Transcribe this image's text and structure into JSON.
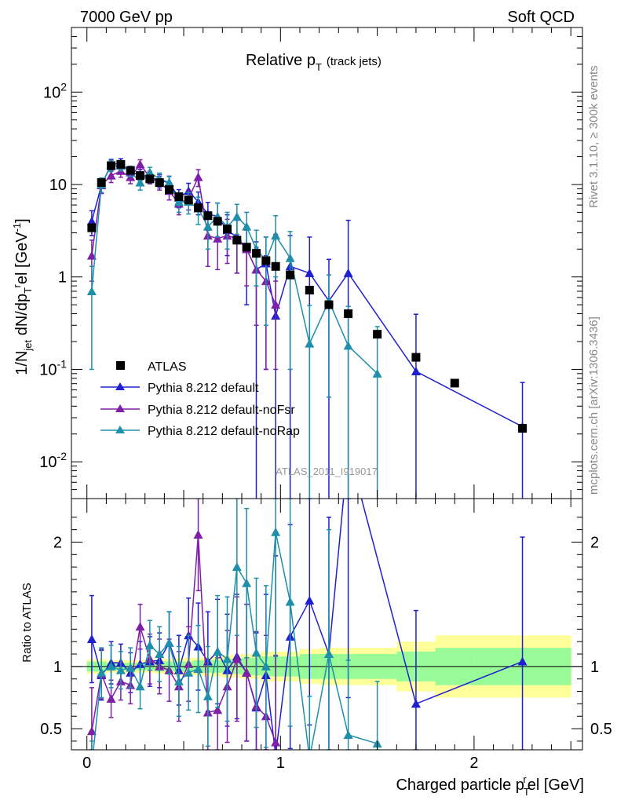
{
  "header": {
    "left": "7000 GeV pp",
    "right": "Soft QCD"
  },
  "side_texts": {
    "top": "Rivet 3.1.10, ≥ 300k events",
    "bottom": "mcplots.cern.ch [arXiv:1306.3436]"
  },
  "chart_data": {
    "type": "scatter",
    "title_main": "Relative p",
    "title_sub": "T",
    "title_note": "(track jets)",
    "watermark": "ATLAS_2011_I919017",
    "xlabel": "Charged particle p",
    "xlabel_sub": "T",
    "xlabel_sup": "r",
    "xlabel_tail": "el [GeV]",
    "ylabel": "1/N_jet dN/dp_T^rel [GeV^-1]",
    "ylabel_parts": {
      "a": "1/N",
      "b": "jet",
      "c": " dN/dp",
      "d": "T",
      "e": "r",
      "f": "el [GeV",
      "g": "-1",
      "h": "]"
    },
    "ratio_ylabel": "Ratio to ATLAS",
    "xlim": [
      -0.08,
      2.56
    ],
    "ylim": [
      0.004,
      500
    ],
    "yscale": "log",
    "ratio_ylim": [
      0.33,
      2.35
    ],
    "x_ticks": [
      "0",
      "1",
      "2"
    ],
    "y_ticks": [
      "10^-2",
      "10^-1",
      "1",
      "10",
      "10^2"
    ],
    "ratio_ticks": [
      "0.5",
      "1",
      "2"
    ],
    "legend": [
      "ATLAS",
      "Pythia 8.212 default",
      "Pythia 8.212 default-noFsr",
      "Pythia 8.212 default-noRap"
    ],
    "colors": {
      "data": "#000000",
      "default": "#1f1fd0",
      "noFsr": "#7f1fa8",
      "noRap": "#1f8faa",
      "band_inner": "#98fb98",
      "band_outer": "#ffff99"
    },
    "data": {
      "name": "ATLAS",
      "x": [
        0.025,
        0.075,
        0.125,
        0.175,
        0.225,
        0.275,
        0.325,
        0.375,
        0.425,
        0.475,
        0.525,
        0.575,
        0.625,
        0.675,
        0.725,
        0.775,
        0.825,
        0.875,
        0.925,
        0.975,
        1.05,
        1.15,
        1.25,
        1.35,
        1.5,
        1.7,
        1.9,
        2.25
      ],
      "y": [
        3.4,
        10.5,
        16.0,
        16.5,
        14.2,
        12.5,
        11.5,
        10.5,
        8.8,
        7.4,
        6.8,
        5.6,
        4.6,
        4.0,
        3.3,
        2.5,
        2.1,
        1.8,
        1.5,
        1.3,
        1.05,
        0.72,
        0.5,
        0.4,
        0.24,
        0.135,
        0.071,
        0.023
      ]
    },
    "series": [
      {
        "name": "Pythia 8.212 default",
        "x": [
          0.025,
          0.075,
          0.125,
          0.175,
          0.225,
          0.275,
          0.325,
          0.375,
          0.425,
          0.475,
          0.525,
          0.575,
          0.625,
          0.675,
          0.725,
          0.775,
          0.825,
          0.875,
          0.925,
          0.975,
          1.05,
          1.15,
          1.25,
          1.35,
          1.7,
          2.25
        ],
        "y": [
          4.0,
          9.8,
          16.5,
          17.0,
          13.5,
          12.8,
          12.0,
          11.0,
          10.5,
          7.2,
          8.5,
          6.5,
          4.8,
          4.5,
          3.2,
          2.7,
          2.0,
          1.2,
          1.4,
          0.38,
          1.3,
          1.1,
          0.55,
          1.1,
          0.095,
          0.024
        ],
        "yerr": [
          1.2,
          1.8,
          2.2,
          2.0,
          1.8,
          1.8,
          1.8,
          1.8,
          1.8,
          1.6,
          1.8,
          1.8,
          1.6,
          1.8,
          1.5,
          1.6,
          1.5,
          1.2,
          1.3,
          2.5,
          1.5,
          1.6,
          1.0,
          3.0,
          0.3,
          0.048
        ],
        "ratio": [
          1.22,
          0.93,
          1.03,
          1.03,
          0.95,
          1.02,
          1.04,
          1.05,
          1.19,
          0.97,
          1.25,
          1.16,
          1.04,
          1.12,
          0.97,
          1.08,
          0.95,
          0.67,
          0.93,
          0.29,
          1.24,
          1.53,
          1.1,
          2.75,
          0.7,
          1.04
        ],
        "ratio_err": [
          0.35,
          0.2,
          0.17,
          0.15,
          0.16,
          0.18,
          0.2,
          0.22,
          0.25,
          0.28,
          0.3,
          0.35,
          0.4,
          0.42,
          0.45,
          0.5,
          0.55,
          0.6,
          0.65,
          1.6,
          0.9,
          1.0,
          1.1,
          2.0,
          0.75,
          1.0
        ]
      },
      {
        "name": "Pythia 8.212 default-noFsr",
        "x": [
          0.025,
          0.075,
          0.125,
          0.175,
          0.225,
          0.275,
          0.325,
          0.375,
          0.425,
          0.475,
          0.525,
          0.575,
          0.625,
          0.675,
          0.725,
          0.775,
          0.825,
          0.875,
          0.925,
          0.975
        ],
        "y": [
          1.7,
          9.8,
          12.5,
          14.0,
          12.0,
          16.5,
          12.0,
          10.5,
          8.5,
          6.2,
          7.0,
          12.0,
          2.8,
          2.6,
          2.8,
          2.6,
          2.0,
          1.2,
          0.9,
          0.5
        ],
        "yerr": [
          0.8,
          1.8,
          2.0,
          2.0,
          1.8,
          2.0,
          1.8,
          1.8,
          1.7,
          1.5,
          1.7,
          2.5,
          1.5,
          1.4,
          1.4,
          1.5,
          1.2,
          0.9,
          0.8,
          0.4
        ],
        "ratio": [
          0.48,
          0.94,
          0.74,
          0.88,
          0.85,
          1.32,
          1.06,
          1.0,
          0.97,
          0.84,
          1.02,
          2.06,
          0.63,
          0.65,
          0.84,
          1.06,
          0.95,
          0.68,
          0.6,
          0.39
        ],
        "ratio_err": [
          0.35,
          0.2,
          0.15,
          0.15,
          0.15,
          0.18,
          0.2,
          0.22,
          0.25,
          0.28,
          0.3,
          0.45,
          0.4,
          0.42,
          0.45,
          0.5,
          0.55,
          0.6,
          0.65,
          0.7
        ]
      },
      {
        "name": "Pythia 8.212 default-noRap",
        "x": [
          0.025,
          0.075,
          0.125,
          0.175,
          0.225,
          0.275,
          0.325,
          0.375,
          0.425,
          0.475,
          0.525,
          0.575,
          0.625,
          0.675,
          0.725,
          0.775,
          0.825,
          0.875,
          0.925,
          0.975,
          1.05,
          1.15,
          1.25,
          1.35,
          1.5
        ],
        "y": [
          0.7,
          10.0,
          16.0,
          16.0,
          14.0,
          10.5,
          13.5,
          11.5,
          10.5,
          6.5,
          6.5,
          5.5,
          3.5,
          4.5,
          3.5,
          4.5,
          3.5,
          2.0,
          1.5,
          2.8,
          1.6,
          0.19,
          0.55,
          0.18,
          0.09
        ],
        "yerr": [
          0.6,
          1.8,
          2.2,
          2.0,
          1.8,
          1.8,
          1.8,
          1.8,
          1.7,
          1.5,
          1.7,
          1.8,
          1.5,
          1.8,
          1.5,
          1.6,
          1.5,
          1.2,
          1.2,
          1.8,
          1.5,
          0.3,
          0.5,
          0.3,
          0.2
        ],
        "ratio": [
          0.2,
          0.95,
          1.0,
          0.97,
          0.99,
          0.84,
          1.17,
          1.1,
          1.19,
          0.88,
          0.95,
          0.98,
          0.76,
          1.12,
          1.06,
          1.8,
          1.67,
          1.11,
          1.0,
          2.08,
          1.52,
          0.26,
          1.1,
          0.45,
          0.38
        ],
        "ratio_err": [
          0.2,
          0.2,
          0.17,
          0.15,
          0.16,
          0.18,
          0.2,
          0.22,
          0.25,
          0.28,
          0.3,
          0.35,
          0.4,
          0.45,
          0.5,
          0.55,
          0.6,
          0.6,
          0.65,
          1.0,
          1.0,
          0.5,
          1.0,
          0.6,
          0.5
        ]
      }
    ],
    "uncertainty_band": {
      "edges": [
        0,
        0.05,
        0.1,
        0.15,
        0.2,
        0.25,
        0.3,
        0.35,
        0.4,
        0.45,
        0.5,
        0.55,
        0.6,
        0.65,
        0.7,
        0.75,
        0.8,
        0.85,
        0.9,
        0.95,
        1.0,
        1.1,
        1.2,
        1.3,
        1.4,
        1.6,
        1.8,
        2.0,
        2.5
      ],
      "inner": [
        0.04,
        0.04,
        0.03,
        0.03,
        0.03,
        0.03,
        0.03,
        0.04,
        0.04,
        0.04,
        0.04,
        0.05,
        0.05,
        0.05,
        0.06,
        0.06,
        0.07,
        0.07,
        0.08,
        0.08,
        0.08,
        0.1,
        0.1,
        0.1,
        0.1,
        0.12,
        0.15,
        0.15
      ],
      "outer": [
        0.06,
        0.06,
        0.05,
        0.05,
        0.05,
        0.05,
        0.05,
        0.06,
        0.06,
        0.07,
        0.07,
        0.07,
        0.08,
        0.08,
        0.09,
        0.09,
        0.1,
        0.1,
        0.12,
        0.12,
        0.12,
        0.14,
        0.15,
        0.15,
        0.15,
        0.2,
        0.25,
        0.25
      ]
    }
  }
}
